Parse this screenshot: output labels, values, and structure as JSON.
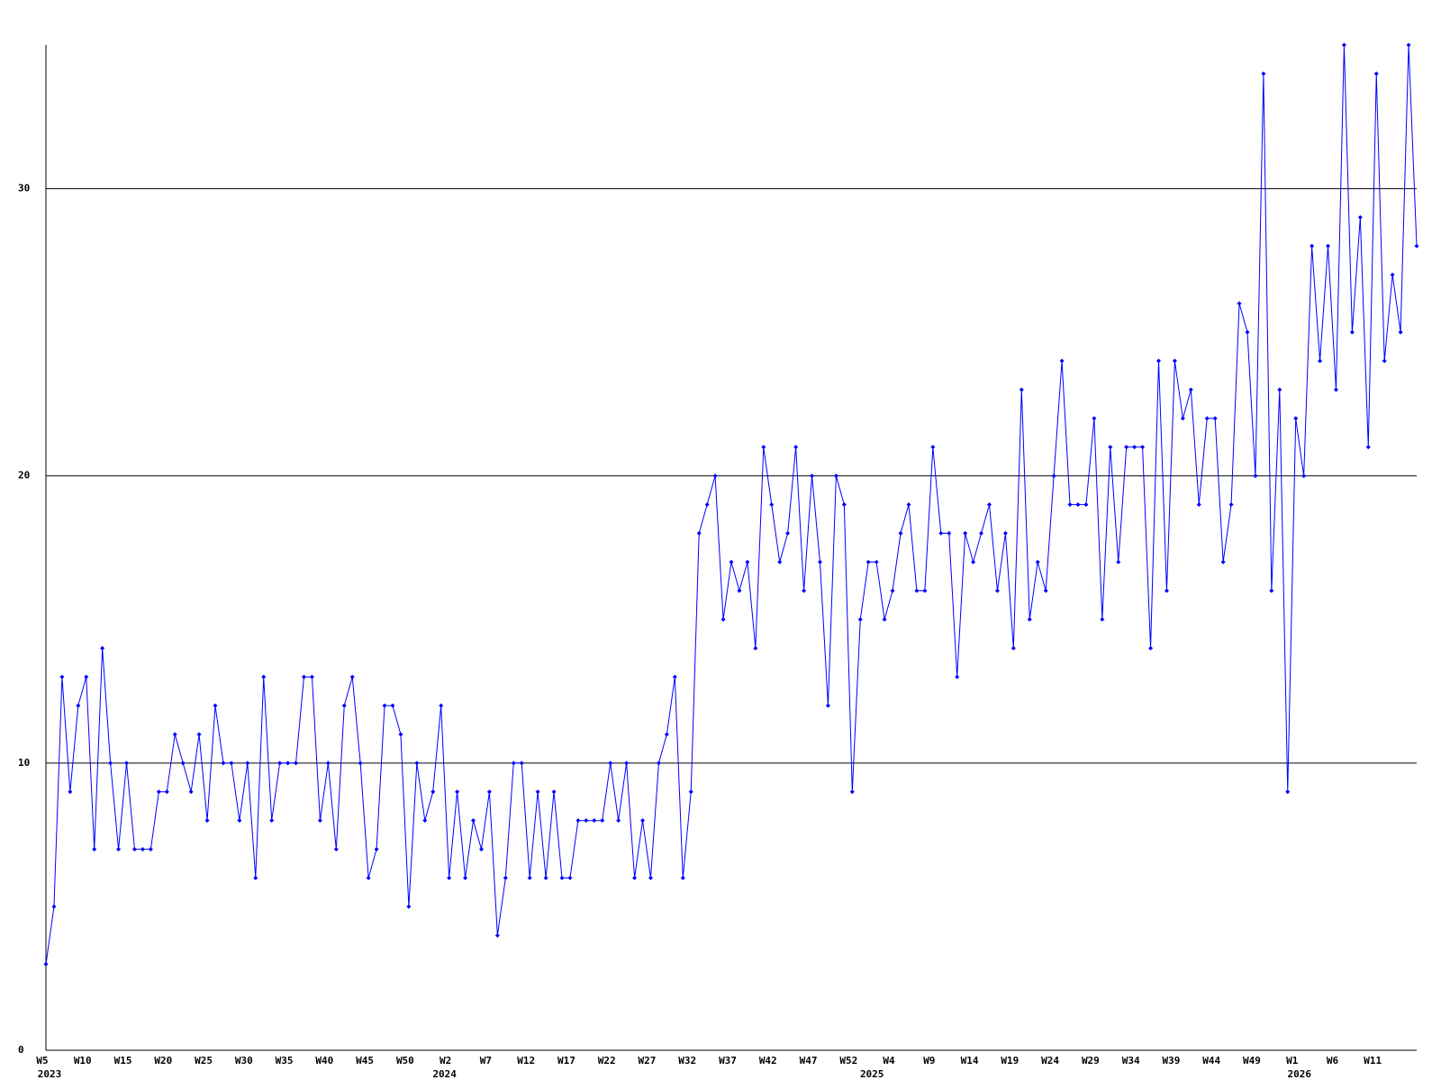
{
  "chart_data": {
    "type": "line",
    "categories": [
      "W5",
      null,
      null,
      null,
      null,
      "W10",
      null,
      null,
      null,
      null,
      "W15",
      null,
      null,
      null,
      null,
      "W20",
      null,
      null,
      null,
      null,
      "W25",
      null,
      null,
      null,
      null,
      "W30",
      null,
      null,
      null,
      null,
      "W35",
      null,
      null,
      null,
      null,
      "W40",
      null,
      null,
      null,
      null,
      "W45",
      null,
      null,
      null,
      null,
      "W50",
      null,
      null,
      null,
      null,
      "W2",
      null,
      null,
      null,
      null,
      "W7",
      null,
      null,
      null,
      null,
      "W12",
      null,
      null,
      null,
      null,
      "W17",
      null,
      null,
      null,
      null,
      "W22",
      null,
      null,
      null,
      null,
      "W27",
      null,
      null,
      null,
      null,
      "W32",
      null,
      null,
      null,
      null,
      "W37",
      null,
      null,
      null,
      null,
      "W42",
      null,
      null,
      null,
      null,
      "W47",
      null,
      null,
      null,
      null,
      "W52",
      null,
      null,
      null,
      null,
      "W4",
      null,
      null,
      null,
      null,
      "W9",
      null,
      null,
      null,
      null,
      "W14",
      null,
      null,
      null,
      null,
      "W19",
      null,
      null,
      null,
      null,
      "W24",
      null,
      null,
      null,
      null,
      "W29",
      null,
      null,
      null,
      null,
      "W34",
      null,
      null,
      null,
      null,
      "W39",
      null,
      null,
      null,
      null,
      "W44",
      null,
      null,
      null,
      null,
      "W49",
      null,
      null,
      null,
      null,
      "W1",
      null,
      null,
      null,
      null,
      "W6",
      null,
      null,
      null,
      null,
      "W11",
      null,
      null,
      null,
      null,
      null
    ],
    "year_labels": [
      {
        "at": 0,
        "label": "2023"
      },
      {
        "at": 49,
        "label": "2024"
      },
      {
        "at": 102,
        "label": "2025"
      },
      {
        "at": 155,
        "label": "2026"
      }
    ],
    "values": [
      3,
      5,
      13,
      9,
      12,
      13,
      7,
      14,
      10,
      7,
      10,
      7,
      7,
      7,
      9,
      9,
      11,
      10,
      9,
      11,
      8,
      12,
      10,
      10,
      8,
      10,
      6,
      13,
      8,
      10,
      10,
      10,
      13,
      13,
      8,
      10,
      7,
      12,
      13,
      10,
      6,
      7,
      12,
      12,
      11,
      5,
      10,
      8,
      9,
      12,
      6,
      9,
      6,
      8,
      7,
      9,
      4,
      6,
      10,
      10,
      6,
      9,
      6,
      9,
      6,
      6,
      8,
      8,
      8,
      8,
      10,
      8,
      10,
      6,
      8,
      6,
      10,
      11,
      13,
      6,
      9,
      18,
      19,
      20,
      15,
      17,
      16,
      17,
      14,
      21,
      19,
      17,
      18,
      21,
      16,
      20,
      17,
      12,
      20,
      19,
      9,
      15,
      17,
      17,
      15,
      16,
      18,
      19,
      16,
      16,
      21,
      18,
      18,
      13,
      18,
      17,
      18,
      19,
      16,
      18,
      14,
      23,
      15,
      17,
      16,
      20,
      24,
      19,
      19,
      19,
      22,
      15,
      21,
      17,
      21,
      21,
      21,
      14,
      24,
      16,
      24,
      22,
      23,
      19,
      22,
      22,
      17,
      19,
      26,
      25,
      20,
      34,
      16,
      23,
      9,
      22,
      20,
      28,
      24,
      28,
      23,
      35,
      25,
      29,
      21,
      34,
      24,
      27,
      25,
      35,
      28
    ],
    "color": "#0000ff",
    "ylim": [
      0,
      35
    ],
    "yticks": [
      0,
      10,
      20,
      30
    ],
    "grid": true
  }
}
